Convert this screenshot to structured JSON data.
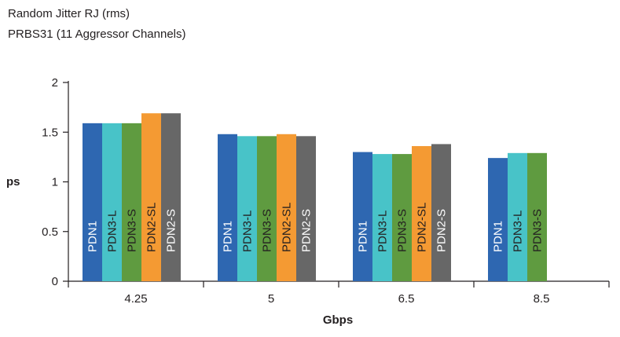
{
  "chart_data": {
    "type": "bar",
    "title": "Random Jitter RJ (rms)",
    "subtitle": "PRBS31 (11 Aggressor Channels)",
    "xlabel": "Gbps",
    "ylabel": "ps",
    "ylim": [
      0,
      2
    ],
    "yticks": [
      "0",
      "0.5",
      "1",
      "1.5",
      "2"
    ],
    "categories": [
      "4.25",
      "5",
      "6.5",
      "8.5"
    ],
    "series": [
      {
        "name": "PDN1",
        "color": "#2e67b1",
        "label_color": "#ffffff",
        "values": [
          1.59,
          1.48,
          1.3,
          1.24
        ]
      },
      {
        "name": "PDN3-L",
        "color": "#48c3c8",
        "label_color": "#231f20",
        "values": [
          1.59,
          1.46,
          1.28,
          1.29
        ]
      },
      {
        "name": "PDN3-S",
        "color": "#5f9b40",
        "label_color": "#231f20",
        "values": [
          1.59,
          1.46,
          1.28,
          1.29
        ]
      },
      {
        "name": "PDN2-SL",
        "color": "#f49a33",
        "label_color": "#231f20",
        "values": [
          1.69,
          1.48,
          1.36,
          null
        ]
      },
      {
        "name": "PDN2-S",
        "color": "#676767",
        "label_color": "#ffffff",
        "values": [
          1.69,
          1.46,
          1.38,
          null
        ]
      }
    ],
    "grid": false,
    "legend": "none"
  }
}
